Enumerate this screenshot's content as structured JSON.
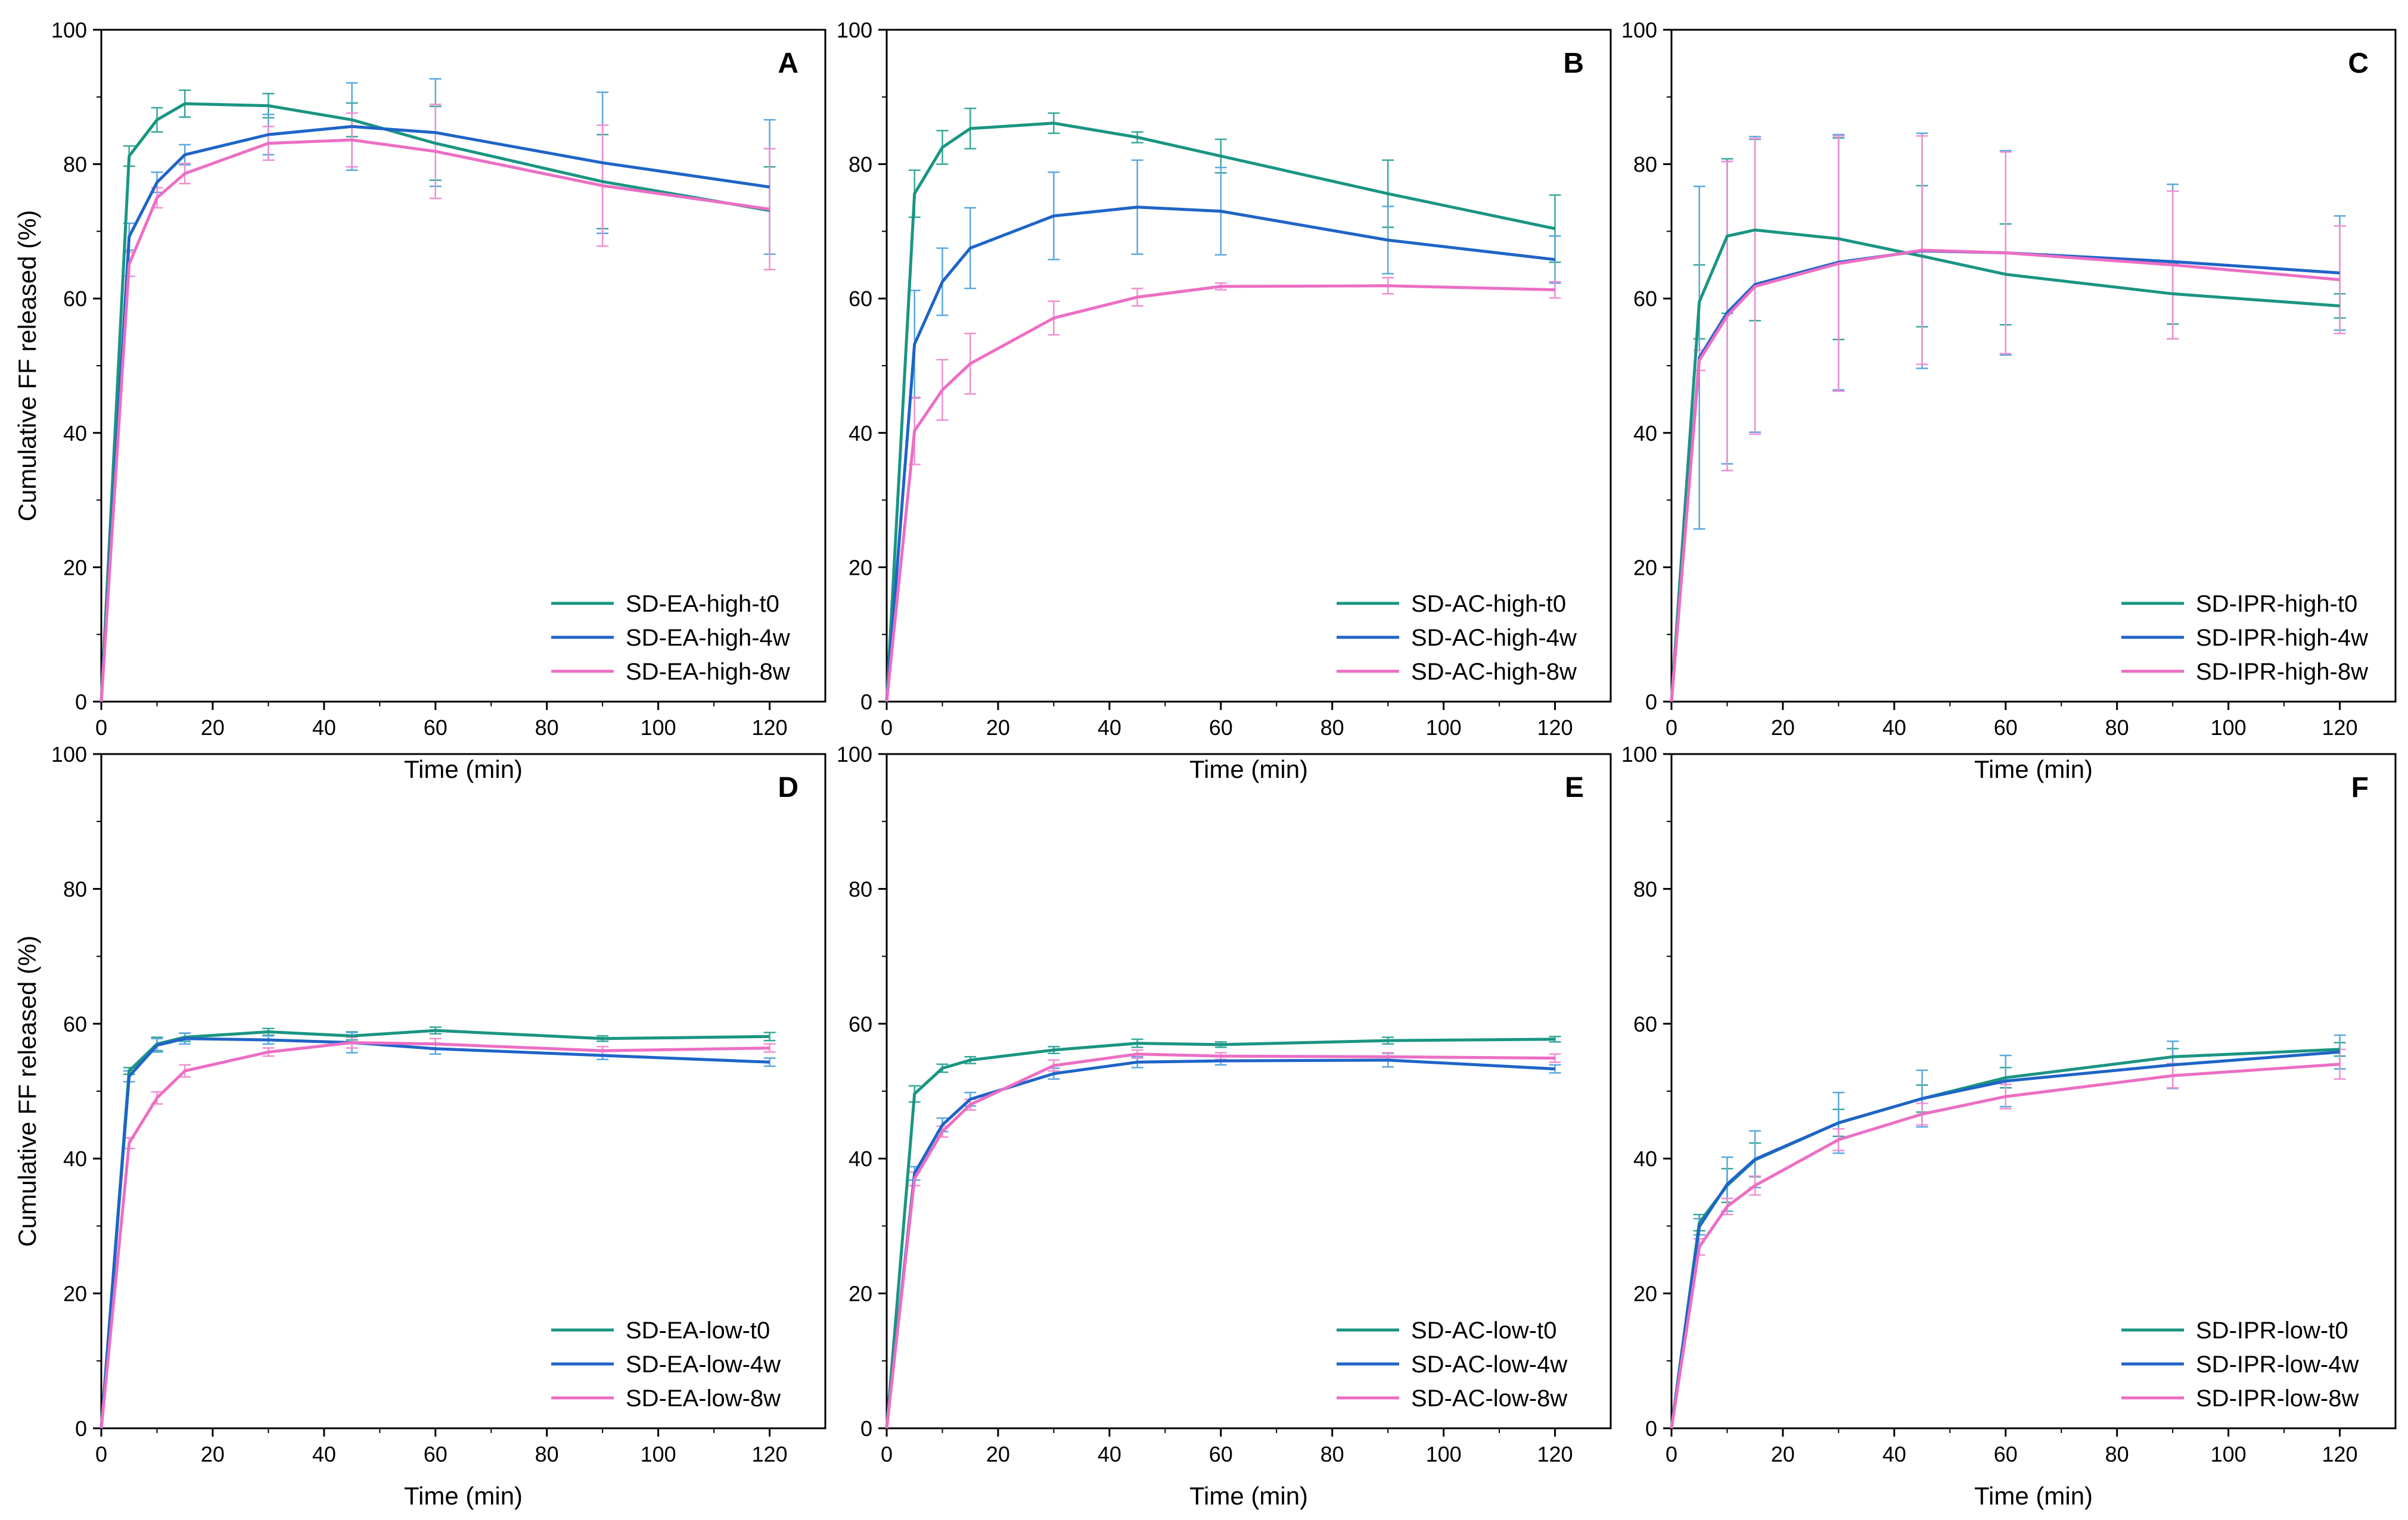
{
  "colors": {
    "t0": "#1a9582",
    "w4": "#1f64c7",
    "w8": "#ec6ec4",
    "err_t0": "#37a89a",
    "err_w4": "#5aa8e0",
    "err_w8": "#f08fd2"
  },
  "chart_data": [
    {
      "type": "line",
      "panel": "A",
      "xlabel": "Time (min)",
      "ylabel": "Cumulative FF released (%)",
      "xlim": [
        0,
        130
      ],
      "ylim": [
        0,
        100
      ],
      "xticks": [
        "0",
        "20",
        "40",
        "60",
        "80",
        "100",
        "120"
      ],
      "yticks": [
        "0",
        "20",
        "40",
        "60",
        "80",
        "100"
      ],
      "legend_position": "bottom-right",
      "x": [
        0,
        5,
        10,
        15,
        30,
        45,
        60,
        90,
        120
      ],
      "series": [
        {
          "name": "SD-EA-high-t0",
          "color_key": "t0",
          "values": [
            0,
            81.2,
            86.6,
            89.0,
            88.7,
            86.6,
            83.1,
            77.4,
            73.1
          ],
          "errors": [
            0,
            1.5,
            1.8,
            2.0,
            1.8,
            2.5,
            5.5,
            7.0,
            6.5
          ]
        },
        {
          "name": "SD-EA-high-4w",
          "color_key": "w4",
          "values": [
            0,
            69.2,
            77.3,
            81.4,
            84.4,
            85.6,
            84.7,
            80.2,
            76.6
          ],
          "errors": [
            0,
            2.0,
            1.5,
            1.5,
            3.0,
            6.5,
            8.0,
            10.5,
            10.0
          ]
        },
        {
          "name": "SD-EA-high-8w",
          "color_key": "w8",
          "values": [
            0,
            65.1,
            75.0,
            78.6,
            83.1,
            83.6,
            81.9,
            76.8,
            73.3
          ],
          "errors": [
            0,
            1.8,
            1.5,
            1.5,
            2.5,
            4.0,
            7.0,
            9.0,
            9.0
          ]
        }
      ]
    },
    {
      "type": "line",
      "panel": "B",
      "xlabel": "Time (min)",
      "ylabel": "",
      "xlim": [
        0,
        130
      ],
      "ylim": [
        0,
        100
      ],
      "xticks": [
        "0",
        "20",
        "40",
        "60",
        "80",
        "100",
        "120"
      ],
      "yticks": [
        "0",
        "20",
        "40",
        "60",
        "80",
        "100"
      ],
      "legend_position": "bottom-right",
      "x": [
        0,
        5,
        10,
        15,
        30,
        45,
        60,
        90,
        120
      ],
      "series": [
        {
          "name": "SD-AC-high-t0",
          "color_key": "t0",
          "values": [
            0,
            75.6,
            82.5,
            85.3,
            86.1,
            84.0,
            81.2,
            75.6,
            70.4
          ],
          "errors": [
            0,
            3.5,
            2.5,
            3.0,
            1.5,
            0.8,
            2.5,
            5.0,
            5.0
          ]
        },
        {
          "name": "SD-AC-high-4w",
          "color_key": "w4",
          "values": [
            0,
            53.2,
            62.5,
            67.5,
            72.3,
            73.6,
            73.0,
            68.7,
            65.8
          ],
          "errors": [
            0,
            8.0,
            5.0,
            6.0,
            6.5,
            7.0,
            6.5,
            5.0,
            3.5
          ]
        },
        {
          "name": "SD-AC-high-8w",
          "color_key": "w8",
          "values": [
            0,
            40.3,
            46.4,
            50.3,
            57.1,
            60.2,
            61.8,
            61.9,
            61.3
          ],
          "errors": [
            0,
            5.0,
            4.5,
            4.5,
            2.5,
            1.3,
            0.5,
            1.2,
            1.2
          ]
        }
      ]
    },
    {
      "type": "line",
      "panel": "C",
      "xlabel": "Time (min)",
      "ylabel": "",
      "xlim": [
        0,
        130
      ],
      "ylim": [
        0,
        100
      ],
      "xticks": [
        "0",
        "20",
        "40",
        "60",
        "80",
        "100",
        "120"
      ],
      "yticks": [
        "0",
        "20",
        "40",
        "60",
        "80",
        "100"
      ],
      "legend_position": "bottom-right",
      "x": [
        0,
        5,
        10,
        15,
        30,
        45,
        60,
        90,
        120
      ],
      "series": [
        {
          "name": "SD-IPR-high-t0",
          "color_key": "t0",
          "values": [
            0,
            59.5,
            69.3,
            70.2,
            68.9,
            66.3,
            63.6,
            60.7,
            58.9
          ],
          "errors": [
            0,
            5.5,
            11.5,
            13.5,
            15.0,
            10.5,
            7.5,
            4.5,
            1.8
          ]
        },
        {
          "name": "SD-IPR-high-4w",
          "color_key": "w4",
          "values": [
            0,
            51.2,
            57.9,
            62.1,
            65.4,
            67.1,
            66.8,
            65.5,
            63.8
          ],
          "errors": [
            0,
            25.5,
            22.5,
            22.0,
            19.0,
            17.5,
            15.2,
            11.5,
            8.5
          ]
        },
        {
          "name": "SD-IPR-high-8w",
          "color_key": "w8",
          "values": [
            0,
            50.8,
            57.4,
            61.8,
            65.2,
            67.2,
            66.8,
            65.0,
            62.8
          ],
          "errors": [
            0,
            1.5,
            23.0,
            22.0,
            19.0,
            17.0,
            15.0,
            11.0,
            8.0
          ]
        }
      ]
    },
    {
      "type": "line",
      "panel": "D",
      "xlabel": "Time (min)",
      "ylabel": "Cumulative FF released (%)",
      "xlim": [
        0,
        130
      ],
      "ylim": [
        0,
        100
      ],
      "xticks": [
        "0",
        "20",
        "40",
        "60",
        "80",
        "100",
        "120"
      ],
      "yticks": [
        "0",
        "20",
        "40",
        "60",
        "80",
        "100"
      ],
      "legend_position": "bottom-right",
      "x": [
        0,
        5,
        10,
        15,
        30,
        45,
        60,
        90,
        120
      ],
      "series": [
        {
          "name": "SD-EA-low-t0",
          "color_key": "t0",
          "values": [
            0,
            53.0,
            57.0,
            58.0,
            58.8,
            58.2,
            59.0,
            57.8,
            58.1
          ],
          "errors": [
            0,
            0.5,
            1.0,
            0.6,
            0.5,
            0.6,
            0.5,
            0.4,
            0.6
          ]
        },
        {
          "name": "SD-EA-low-4w",
          "color_key": "w4",
          "values": [
            0,
            52.2,
            56.8,
            57.8,
            57.6,
            57.2,
            56.3,
            55.3,
            54.3
          ],
          "errors": [
            0,
            0.8,
            1.0,
            0.8,
            0.6,
            1.5,
            0.8,
            0.6,
            0.6
          ]
        },
        {
          "name": "SD-EA-low-8w",
          "color_key": "w8",
          "values": [
            0,
            42.3,
            49.0,
            53.0,
            55.8,
            57.2,
            57.0,
            56.0,
            56.4
          ],
          "errors": [
            0,
            0.8,
            0.9,
            0.9,
            0.6,
            0.8,
            0.8,
            0.6,
            0.6
          ]
        }
      ]
    },
    {
      "type": "line",
      "panel": "E",
      "xlabel": "Time (min)",
      "ylabel": "",
      "xlim": [
        0,
        130
      ],
      "ylim": [
        0,
        100
      ],
      "xticks": [
        "0",
        "20",
        "40",
        "60",
        "80",
        "100",
        "120"
      ],
      "yticks": [
        "0",
        "20",
        "40",
        "60",
        "80",
        "100"
      ],
      "legend_position": "bottom-right",
      "x": [
        0,
        5,
        10,
        15,
        30,
        45,
        60,
        90,
        120
      ],
      "series": [
        {
          "name": "SD-AC-low-t0",
          "color_key": "t0",
          "values": [
            0,
            49.6,
            53.4,
            54.6,
            56.1,
            57.1,
            56.9,
            57.5,
            57.7
          ],
          "errors": [
            0,
            1.2,
            0.6,
            0.5,
            0.5,
            0.6,
            0.4,
            0.5,
            0.4
          ]
        },
        {
          "name": "SD-AC-low-4w",
          "color_key": "w4",
          "values": [
            0,
            37.8,
            45.0,
            48.8,
            52.6,
            54.3,
            54.5,
            54.6,
            53.3
          ],
          "errors": [
            0,
            1.0,
            1.0,
            1.0,
            0.8,
            0.8,
            0.6,
            1.0,
            0.6
          ]
        },
        {
          "name": "SD-AC-low-8w",
          "color_key": "w8",
          "values": [
            0,
            37.0,
            44.0,
            48.0,
            53.8,
            55.5,
            55.2,
            55.1,
            54.9
          ],
          "errors": [
            0,
            1.0,
            0.8,
            0.8,
            0.8,
            0.6,
            0.5,
            0.6,
            0.6
          ]
        }
      ]
    },
    {
      "type": "line",
      "panel": "F",
      "xlabel": "Time (min)",
      "ylabel": "",
      "xlim": [
        0,
        130
      ],
      "ylim": [
        0,
        100
      ],
      "xticks": [
        "0",
        "20",
        "40",
        "60",
        "80",
        "100",
        "120"
      ],
      "yticks": [
        "0",
        "20",
        "40",
        "60",
        "80",
        "100"
      ],
      "legend_position": "bottom-right",
      "x": [
        0,
        5,
        10,
        15,
        30,
        45,
        60,
        90,
        120
      ],
      "series": [
        {
          "name": "SD-IPR-low-t0",
          "color_key": "t0",
          "values": [
            0,
            30.5,
            36.0,
            39.8,
            45.3,
            48.9,
            52.0,
            55.1,
            56.2
          ],
          "errors": [
            0,
            1.2,
            2.5,
            2.5,
            2.0,
            2.0,
            1.5,
            1.2,
            1.0
          ]
        },
        {
          "name": "SD-IPR-low-4w",
          "color_key": "w4",
          "values": [
            0,
            29.9,
            36.2,
            39.9,
            45.3,
            48.9,
            51.5,
            53.9,
            55.8
          ],
          "errors": [
            0,
            1.2,
            4.0,
            4.2,
            4.5,
            4.2,
            3.8,
            3.5,
            2.5
          ]
        },
        {
          "name": "SD-IPR-low-8w",
          "color_key": "w8",
          "values": [
            0,
            26.9,
            32.9,
            36.0,
            42.8,
            46.6,
            49.2,
            52.3,
            54.0
          ],
          "errors": [
            0,
            1.2,
            1.2,
            1.4,
            1.6,
            1.6,
            1.8,
            1.8,
            2.2
          ]
        }
      ]
    }
  ]
}
